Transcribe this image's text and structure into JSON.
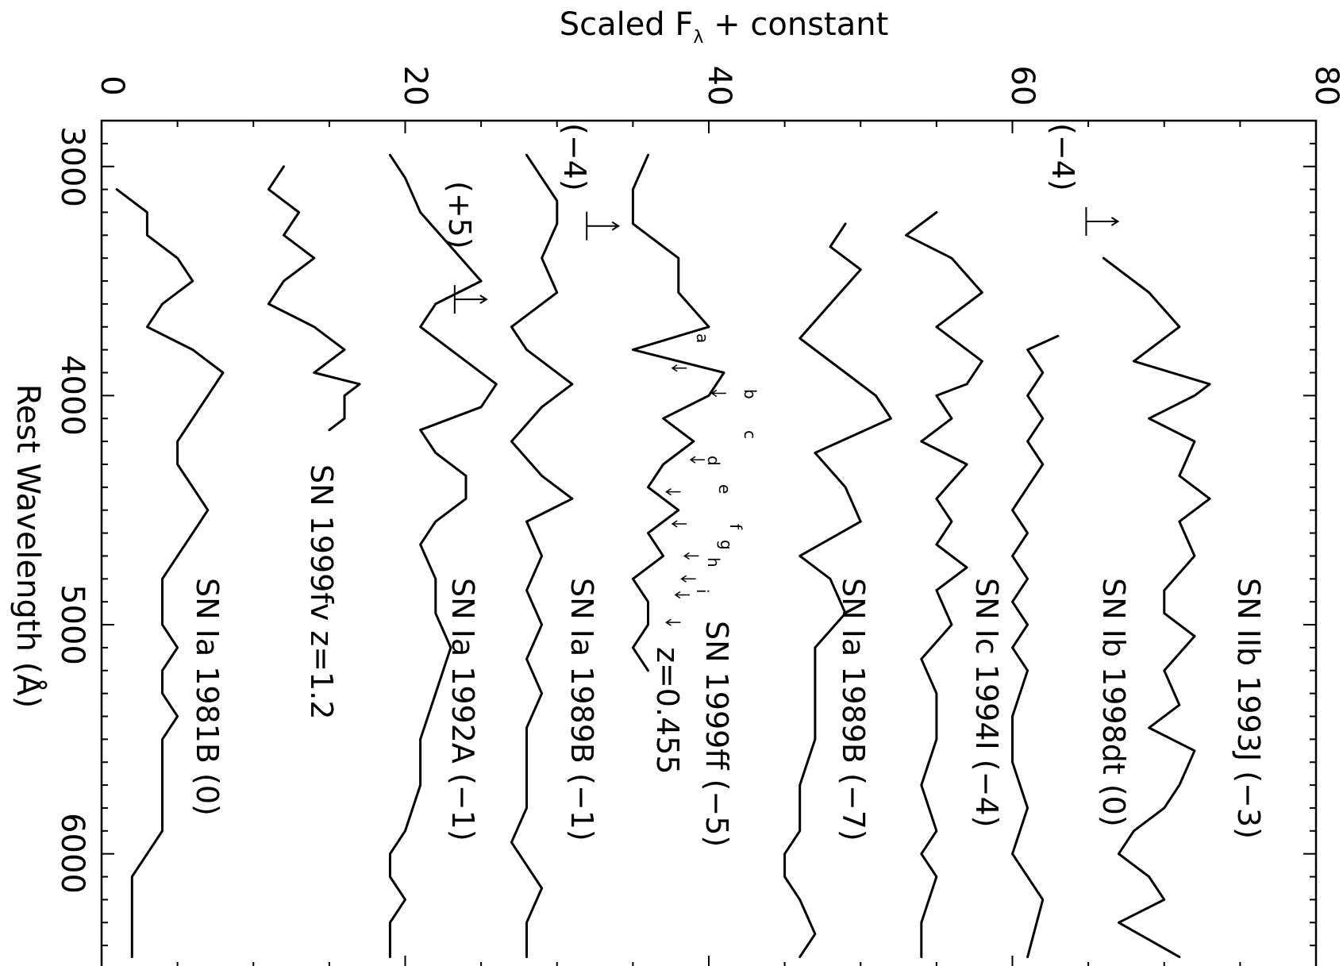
{
  "chart_data": {
    "type": "line",
    "title": "",
    "xlabel": "Rest Wavelength (Å)",
    "ylabel": "Scaled F_λ + constant",
    "ylabel_main": "Scaled F",
    "ylabel_sub": "λ",
    "ylabel_rest": " + constant",
    "xlim": [
      2800,
      6500
    ],
    "ylim": [
      0,
      80
    ],
    "x_ticks": [
      "3000",
      "4000",
      "5000",
      "6000"
    ],
    "y_ticks": [
      "0",
      "20",
      "40",
      "60",
      "80"
    ],
    "series": [
      {
        "name": "SN IIb 1993J (−3)",
        "x": [
          3400,
          3550,
          3700,
          3850,
          3950,
          4000,
          4100,
          4200,
          4350,
          4450,
          4550,
          4700,
          4850,
          4950,
          5050,
          5200,
          5350,
          5450,
          5550,
          5700,
          5800,
          5900,
          6000,
          6100,
          6200,
          6300,
          6450
        ],
        "y": [
          66,
          69,
          71,
          68,
          73,
          72,
          69,
          72,
          71,
          73,
          71,
          72,
          70,
          70,
          72,
          70,
          71,
          69,
          72,
          71,
          70,
          68,
          67,
          69,
          70,
          67,
          71
        ]
      },
      {
        "name": "SN Ib 1998dt (0)",
        "x": [
          3740,
          3800,
          3900,
          4000,
          4100,
          4200,
          4300,
          4400,
          4500,
          4600,
          4700,
          4800,
          4900,
          5000,
          5100,
          5200,
          5400,
          5600,
          5800,
          6000,
          6200,
          6450
        ],
        "y": [
          63,
          61,
          62,
          61,
          62,
          61,
          62,
          61,
          60,
          61,
          60,
          61,
          60,
          61,
          60,
          61,
          60,
          60,
          61,
          60,
          62,
          61
        ]
      },
      {
        "name": "SN Ic 1994I (−4)",
        "x": [
          3200,
          3300,
          3400,
          3550,
          3700,
          3850,
          3950,
          4000,
          4100,
          4200,
          4300,
          4450,
          4550,
          4650,
          4750,
          4850,
          5000,
          5150,
          5300,
          5500,
          5700,
          5900,
          6000,
          6100,
          6300,
          6450
        ],
        "y": [
          55,
          53,
          56,
          58,
          55,
          58,
          57,
          55,
          56,
          54,
          57,
          55,
          56,
          55,
          57,
          55,
          56,
          54,
          55,
          55,
          54,
          55,
          54,
          55,
          54,
          54
        ]
      },
      {
        "name": "SN Ia 1989B (−7)",
        "x": [
          3250,
          3350,
          3450,
          3600,
          3750,
          3900,
          4000,
          4100,
          4250,
          4400,
          4550,
          4700,
          4800,
          4950,
          5100,
          5300,
          5500,
          5700,
          5900,
          6000,
          6100,
          6200,
          6350,
          6450
        ],
        "y": [
          49,
          48,
          50,
          48,
          46,
          49,
          51,
          52,
          47,
          49,
          50,
          46,
          48,
          49,
          47,
          47,
          47,
          46,
          46,
          45,
          45,
          46,
          47,
          46
        ]
      },
      {
        "name": "SN 1999ff (−5)",
        "x": [
          2950,
          3100,
          3250,
          3400,
          3550,
          3700,
          3800,
          3900,
          4000,
          4100,
          4200,
          4300,
          4400,
          4500,
          4600,
          4700,
          4800,
          4900,
          5000,
          5100,
          5200
        ],
        "y": [
          36,
          35,
          35,
          38,
          38,
          40,
          35,
          41,
          40,
          37,
          39,
          37,
          36,
          38,
          36,
          37,
          35,
          36,
          36,
          35,
          36
        ]
      },
      {
        "name": "SN Ia 1989B (−1)",
        "x": [
          2950,
          3050,
          3150,
          3250,
          3400,
          3550,
          3700,
          3800,
          3950,
          4050,
          4200,
          4350,
          4450,
          4550,
          4700,
          4850,
          5000,
          5150,
          5300,
          5450,
          5600,
          5800,
          5950,
          6050,
          6150,
          6300,
          6450
        ],
        "y": [
          28,
          29,
          30,
          30,
          29,
          30,
          27,
          28,
          31,
          29,
          27,
          29,
          31,
          28,
          29,
          28,
          29,
          28,
          29,
          28,
          28,
          28,
          27,
          28,
          29,
          28,
          28
        ]
      },
      {
        "name": "SN Ia 1992A (−1)",
        "x": [
          2950,
          3050,
          3200,
          3350,
          3500,
          3600,
          3700,
          3850,
          3950,
          4050,
          4150,
          4250,
          4350,
          4450,
          4550,
          4650,
          4800,
          4950,
          5100,
          5300,
          5500,
          5700,
          5900,
          6000,
          6100,
          6200,
          6300,
          6450
        ],
        "y": [
          19,
          20,
          21,
          23,
          25,
          22,
          21,
          24,
          26,
          25,
          21,
          22,
          24,
          24,
          22,
          21,
          22,
          22,
          23,
          22,
          21,
          21,
          20,
          19,
          19,
          20,
          19,
          19
        ]
      },
      {
        "name": "SN 1999fv z=1.2",
        "x": [
          3000,
          3100,
          3200,
          3300,
          3400,
          3500,
          3600,
          3700,
          3800,
          3900,
          3950,
          4000,
          4100,
          4150
        ],
        "y": [
          12,
          11,
          13,
          12,
          14,
          12,
          11,
          14,
          16,
          14,
          17,
          16,
          16,
          15
        ]
      },
      {
        "name": "SN Ia 1981B (0)",
        "x": [
          3100,
          3200,
          3300,
          3400,
          3500,
          3600,
          3700,
          3800,
          3900,
          4000,
          4100,
          4200,
          4300,
          4400,
          4500,
          4600,
          4700,
          4800,
          4900,
          5000,
          5100,
          5200,
          5300,
          5400,
          5500,
          5600,
          5700,
          5800,
          5900,
          6000,
          6100,
          6200,
          6300,
          6450
        ],
        "y": [
          1,
          3,
          3,
          5,
          6,
          4,
          3,
          6,
          8,
          7,
          6,
          5,
          5,
          6,
          7,
          6,
          5,
          4,
          4,
          4,
          5,
          4,
          4,
          5,
          4,
          4,
          4,
          4,
          4,
          3,
          2,
          2,
          2,
          2
        ]
      }
    ],
    "annotations": {
      "labels": [
        "SN IIb 1993J (−3)",
        "SN Ib 1998dt (0)",
        "SN Ic 1994I (−4)",
        "SN Ia 1989B (−7)",
        "SN 1999ff (−5)",
        "z=0.455",
        "SN Ia 1989B (−1)",
        "SN Ia 1992A (−1)",
        "SN 1999fv z=1.2",
        "SN Ia 1981B (0)",
        "(−4)",
        "(−4)",
        "(+5)"
      ],
      "feature_marks": [
        "a",
        "b",
        "c",
        "d",
        "e",
        "f",
        "g",
        "h",
        "i"
      ]
    }
  }
}
